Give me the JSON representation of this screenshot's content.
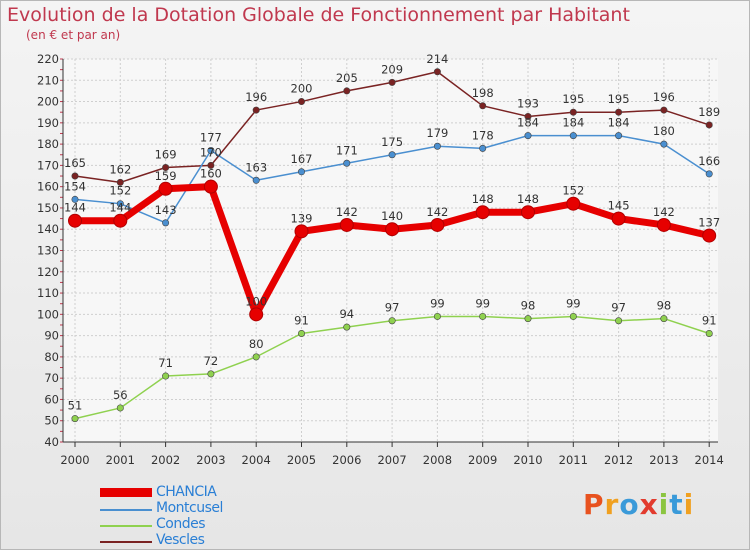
{
  "page": {
    "title": "Evolution de la Dotation Globale de Fonctionnement par Habitant",
    "subtitle": "(en € et par an)"
  },
  "logo": {
    "text": "Proxiti",
    "colors": [
      "#e8521f",
      "#f0a020",
      "#3a9ad9",
      "#e23b2e",
      "#8bc540",
      "#3a9ad9",
      "#f0a020"
    ]
  },
  "chart_data": {
    "type": "line",
    "title": "Evolution de la Dotation Globale de Fonctionnement par Habitant",
    "subtitle": "(en € et par an)",
    "xlabel": "",
    "ylabel": "",
    "ylim": [
      40,
      220
    ],
    "ytick_step": 10,
    "grid": true,
    "legend_position": "bottom-left",
    "x": [
      "2000",
      "2001",
      "2002",
      "2003",
      "2004",
      "2005",
      "2006",
      "2007",
      "2008",
      "2009",
      "2010",
      "2011",
      "2012",
      "2013",
      "2014"
    ],
    "series": [
      {
        "name": "CHANCIA",
        "color": "#e60000",
        "values": [
          144,
          144,
          159,
          160,
          100,
          139,
          142,
          140,
          142,
          148,
          148,
          152,
          145,
          142,
          137
        ]
      },
      {
        "name": "Montcusel",
        "color": "#4a8fd0",
        "values": [
          154,
          152,
          143,
          177,
          163,
          167,
          171,
          175,
          179,
          178,
          184,
          184,
          184,
          180,
          166
        ]
      },
      {
        "name": "Condes",
        "color": "#8fd14f",
        "values": [
          51,
          56,
          71,
          72,
          80,
          91,
          94,
          97,
          99,
          99,
          98,
          99,
          97,
          98,
          91
        ]
      },
      {
        "name": "Vescles",
        "color": "#7a2323",
        "values": [
          165,
          162,
          169,
          170,
          196,
          200,
          205,
          209,
          214,
          198,
          193,
          195,
          195,
          196,
          189
        ]
      }
    ]
  }
}
